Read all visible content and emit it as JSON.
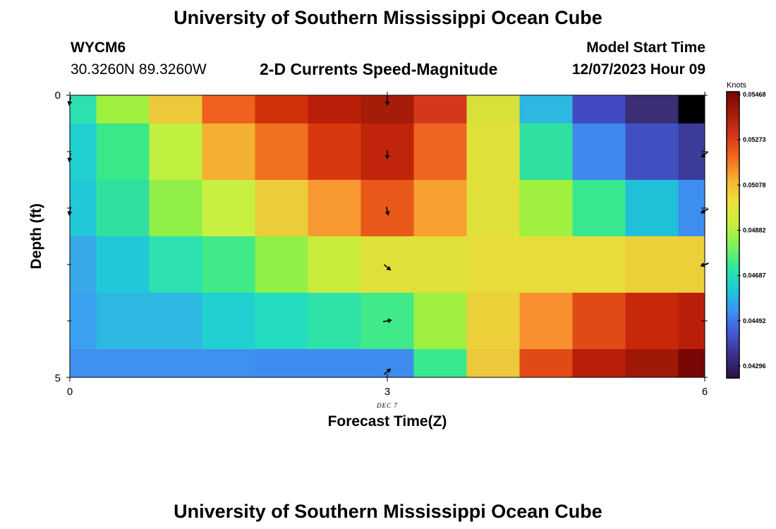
{
  "header": {
    "title": "University of Southern Mississippi Ocean Cube",
    "station": "WYCM6",
    "coords": "30.3260N  89.3260W",
    "subtitle": "2-D Currents Speed-Magnitude",
    "model_start_label": "Model Start Time",
    "model_start_value": "12/07/2023 Hour 09"
  },
  "footer": {
    "title": "University of Southern Mississippi Ocean Cube"
  },
  "chart_data": {
    "type": "heatmap",
    "title": "2-D Currents Speed-Magnitude",
    "xlabel": "Forecast Time(Z)",
    "ylabel": "Depth (ft)",
    "xlim": [
      0,
      6
    ],
    "ylim": [
      0,
      5
    ],
    "x_ticks": [
      "0",
      "3",
      "6"
    ],
    "y_ticks": [
      "0",
      "5"
    ],
    "x_date_label": "DEC 7",
    "colorbar": {
      "title": "Knots",
      "ticks": [
        "0.05468",
        "0.05273",
        "0.05078",
        "0.04882",
        "0.04687",
        "0.04492",
        "0.04296"
      ],
      "min": 0.04296,
      "max": 0.05468,
      "colors": [
        "#2a0f3f",
        "#3a2f8a",
        "#4455d0",
        "#3f8ef5",
        "#20c8d8",
        "#2de8a0",
        "#7cf55a",
        "#c8f03a",
        "#ede03a",
        "#f7b232",
        "#f36a1e",
        "#d4361a",
        "#a51c0a",
        "#7a0606"
      ]
    },
    "row_centers": [
      0.25,
      1.0,
      2.0,
      3.0,
      4.0,
      4.75
    ],
    "row_bounds": [
      0,
      0.5,
      1.5,
      2.5,
      3.5,
      4.5,
      5
    ],
    "col_bounds": [
      0,
      0.25,
      0.75,
      1.25,
      1.75,
      2.25,
      2.75,
      3.25,
      3.75,
      4.25,
      4.75,
      5.25,
      5.75,
      6
    ],
    "cell_colors": [
      [
        "#2de0b0",
        "#a0f040",
        "#ecc83a",
        "#f0601e",
        "#d0300a",
        "#b81e08",
        "#a51c08",
        "#d4381a",
        "#d8e03a",
        "#2cb8e0",
        "#4148c0",
        "#3a2e74",
        "#000000"
      ],
      [
        "#20d0d0",
        "#3ae888",
        "#c0f040",
        "#f4b030",
        "#f07020",
        "#d83810",
        "#c0240a",
        "#ee6420",
        "#e0e03a",
        "#30e0a0",
        "#3e88f0",
        "#4050c0",
        "#3c3c9a"
      ],
      [
        "#20c8d8",
        "#30e0a0",
        "#90f048",
        "#c8f040",
        "#eccc3a",
        "#f89830",
        "#e85818",
        "#f8a030",
        "#e0e03a",
        "#a0f040",
        "#38e890",
        "#20c0d8",
        "#3e8ef0"
      ],
      [
        "#38a8e8",
        "#20c8d8",
        "#2ee0b0",
        "#40ea88",
        "#90f048",
        "#c8ec3a",
        "#e0e03a",
        "#e0e03a",
        "#e8dc3a",
        "#e8dc3a",
        "#e8dc3a",
        "#ecd03a",
        "#ecd03a"
      ],
      [
        "#3aa0f0",
        "#2cb8e0",
        "#2cb8e0",
        "#20d0d0",
        "#24ddc0",
        "#2ee2a8",
        "#40ea88",
        "#a0f040",
        "#ecd03a",
        "#f89030",
        "#e04a14",
        "#c8280a",
        "#b81e08"
      ],
      [
        "#4090f0",
        "#4090f0",
        "#4090f0",
        "#4090f0",
        "#3e8cf0",
        "#3e8cf0",
        "#3e8cf0",
        "#38e890",
        "#ecc83a",
        "#e04a14",
        "#b81e08",
        "#a01808",
        "#7a0606"
      ]
    ],
    "vectors": [
      {
        "x": 0,
        "depth": 0.1,
        "angle": 100
      },
      {
        "x": 0,
        "depth": 1.1,
        "angle": 100
      },
      {
        "x": 0,
        "depth": 2.05,
        "angle": 100
      },
      {
        "x": 3,
        "depth": 0.1,
        "angle": 90
      },
      {
        "x": 3,
        "depth": 1.05,
        "angle": 90
      },
      {
        "x": 3,
        "depth": 2.05,
        "angle": 80
      },
      {
        "x": 3,
        "depth": 3.05,
        "angle": 40
      },
      {
        "x": 3,
        "depth": 4.0,
        "angle": -10
      },
      {
        "x": 3,
        "depth": 4.9,
        "angle": -40
      },
      {
        "x": 6,
        "depth": 1.05,
        "angle": 140
      },
      {
        "x": 6,
        "depth": 2.05,
        "angle": 150
      },
      {
        "x": 6,
        "depth": 3.0,
        "angle": 160
      }
    ]
  }
}
